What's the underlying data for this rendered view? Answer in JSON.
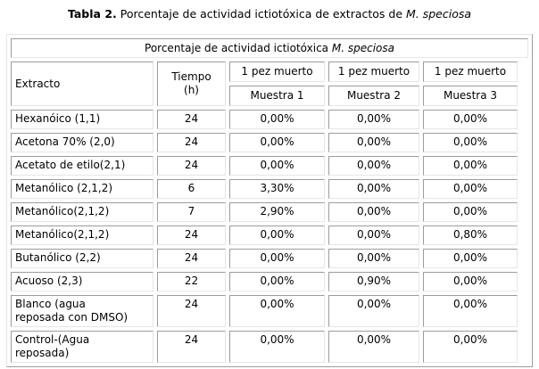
{
  "page_title": {
    "bold": "Tabla 2.",
    "regular": " Porcentaje de actividad ictiotóxica de extractos de ",
    "italic": "M. speciosa"
  },
  "table": {
    "caption": {
      "regular": "Porcentaje de actividad ictiotóxica ",
      "italic": "M. speciosa"
    },
    "headers": {
      "extracto": "Extracto",
      "tiempo": "Tiempo\n(h)",
      "muestras": [
        {
          "top": "1 pez muerto",
          "bottom": "Muestra 1"
        },
        {
          "top": "1 pez muerto",
          "bottom": "Muestra 2"
        },
        {
          "top": "1 pez muerto",
          "bottom": "Muestra 3"
        }
      ]
    },
    "rows": [
      {
        "extracto": "Hexanóico (1,1)",
        "tiempo": "24",
        "muestra1": "0,00%",
        "muestra2": "0,00%",
        "muestra3": "0,00%"
      },
      {
        "extracto": "Acetona 70% (2,0)",
        "tiempo": "24",
        "muestra1": "0,00%",
        "muestra2": "0,00%",
        "muestra3": "0,00%"
      },
      {
        "extracto": "Acetato de etilo(2,1)",
        "tiempo": "24",
        "muestra1": "0,00%",
        "muestra2": "0,00%",
        "muestra3": "0,00%"
      },
      {
        "extracto": "Metanólico (2,1,2)",
        "tiempo": "6",
        "muestra1": "3,30%",
        "muestra2": "0,00%",
        "muestra3": "0,00%"
      },
      {
        "extracto": "Metanólico(2,1,2)",
        "tiempo": "7",
        "muestra1": "2,90%",
        "muestra2": "0,00%",
        "muestra3": "0,00%"
      },
      {
        "extracto": "Metanólico(2,1,2)",
        "tiempo": "24",
        "muestra1": "0,00%",
        "muestra2": "0,00%",
        "muestra3": "0,80%"
      },
      {
        "extracto": "Butanólico (2,2)",
        "tiempo": "24",
        "muestra1": "0,00%",
        "muestra2": "0,00%",
        "muestra3": "0,00%"
      },
      {
        "extracto": "Acuoso (2,3)",
        "tiempo": "22",
        "muestra1": "0,00%",
        "muestra2": "0,90%",
        "muestra3": "0,00%"
      },
      {
        "extracto": "Blanco (agua\nreposada con DMSO)",
        "tiempo": "24",
        "muestra1": "0,00%",
        "muestra2": "0,00%",
        "muestra3": "0,00%"
      },
      {
        "extracto": "Control-(Agua\nreposada)",
        "tiempo": "24",
        "muestra1": "0,00%",
        "muestra2": "0,00%",
        "muestra3": "0,00%"
      }
    ],
    "colors": {
      "border_dark": "#9c9c9c",
      "border_light": "#e6e6e6",
      "text": "#000000",
      "background": "#ffffff"
    }
  }
}
